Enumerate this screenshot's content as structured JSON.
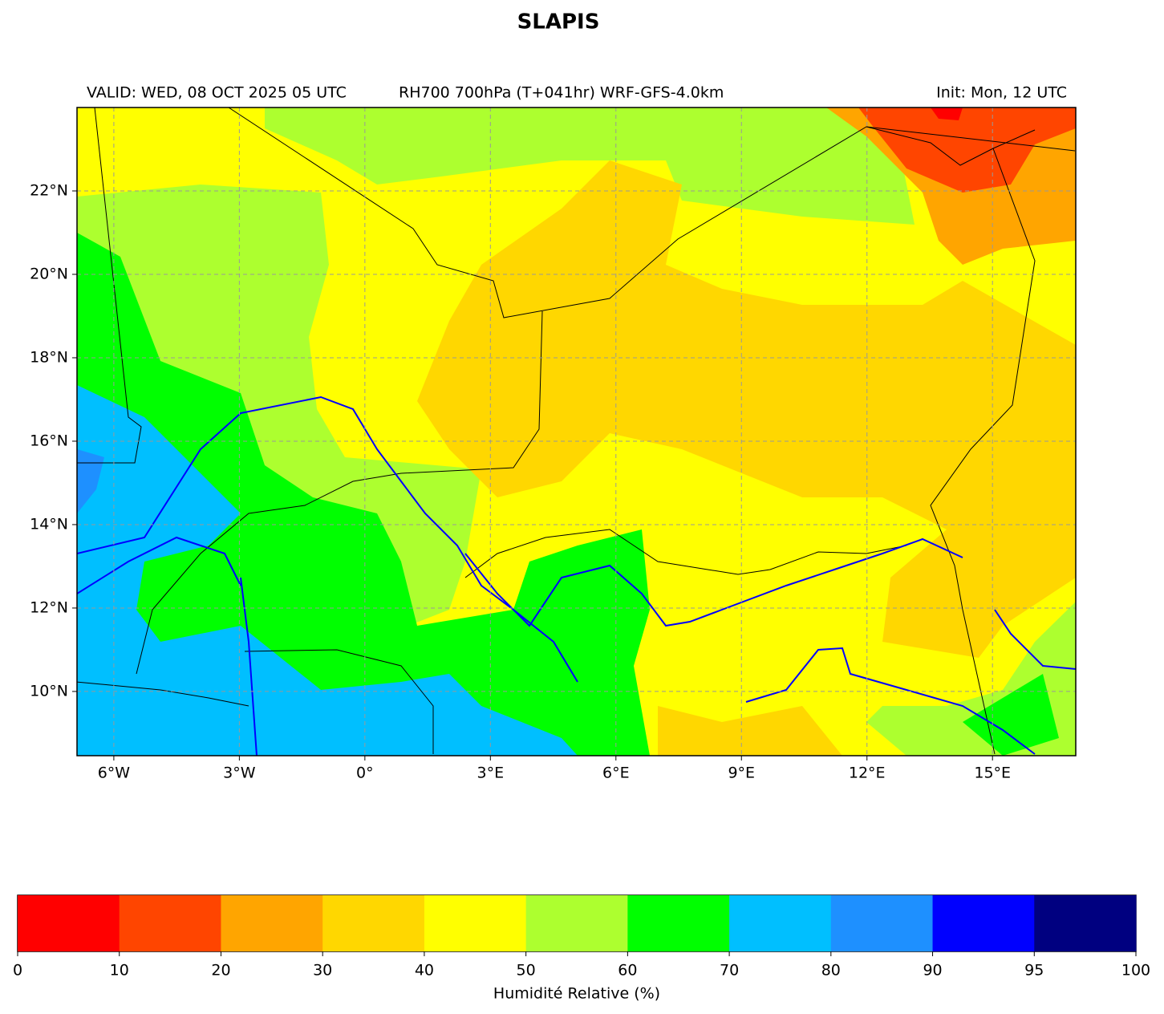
{
  "title": "SLAPIS",
  "header": {
    "valid": "VALID: WED, 08 OCT 2025 05 UTC",
    "product": "RH700 700hPa (T+041hr) WRF-GFS-4.0km",
    "init": "Init: Mon, 12 UTC"
  },
  "map": {
    "xlim": [
      -6.88,
      16.99
    ],
    "ylim": [
      8.46,
      24.0
    ],
    "grid": true,
    "xticks": [
      {
        "value": -6,
        "label": "6°W"
      },
      {
        "value": -3,
        "label": "3°W"
      },
      {
        "value": 0,
        "label": "0°"
      },
      {
        "value": 3,
        "label": "3°E"
      },
      {
        "value": 6,
        "label": "6°E"
      },
      {
        "value": 9,
        "label": "9°E"
      },
      {
        "value": 12,
        "label": "12°E"
      },
      {
        "value": 15,
        "label": "15°E"
      }
    ],
    "yticks": [
      {
        "value": 10,
        "label": "10°N"
      },
      {
        "value": 12,
        "label": "12°N"
      },
      {
        "value": 14,
        "label": "14°N"
      },
      {
        "value": 16,
        "label": "16°N"
      },
      {
        "value": 18,
        "label": "18°N"
      },
      {
        "value": 20,
        "label": "20°N"
      },
      {
        "value": 22,
        "label": "22°N"
      }
    ]
  },
  "colorbar": {
    "label": "Humidité Relative (%)",
    "bounds": [
      0,
      10,
      20,
      30,
      40,
      50,
      60,
      70,
      80,
      90,
      95,
      100
    ],
    "colors": [
      "#ff0000",
      "#ff4500",
      "#ffa500",
      "#ffd700",
      "#ffff00",
      "#adff2f",
      "#00ff00",
      "#00bfff",
      "#1e90ff",
      "#0000ff",
      "#000080"
    ]
  }
}
